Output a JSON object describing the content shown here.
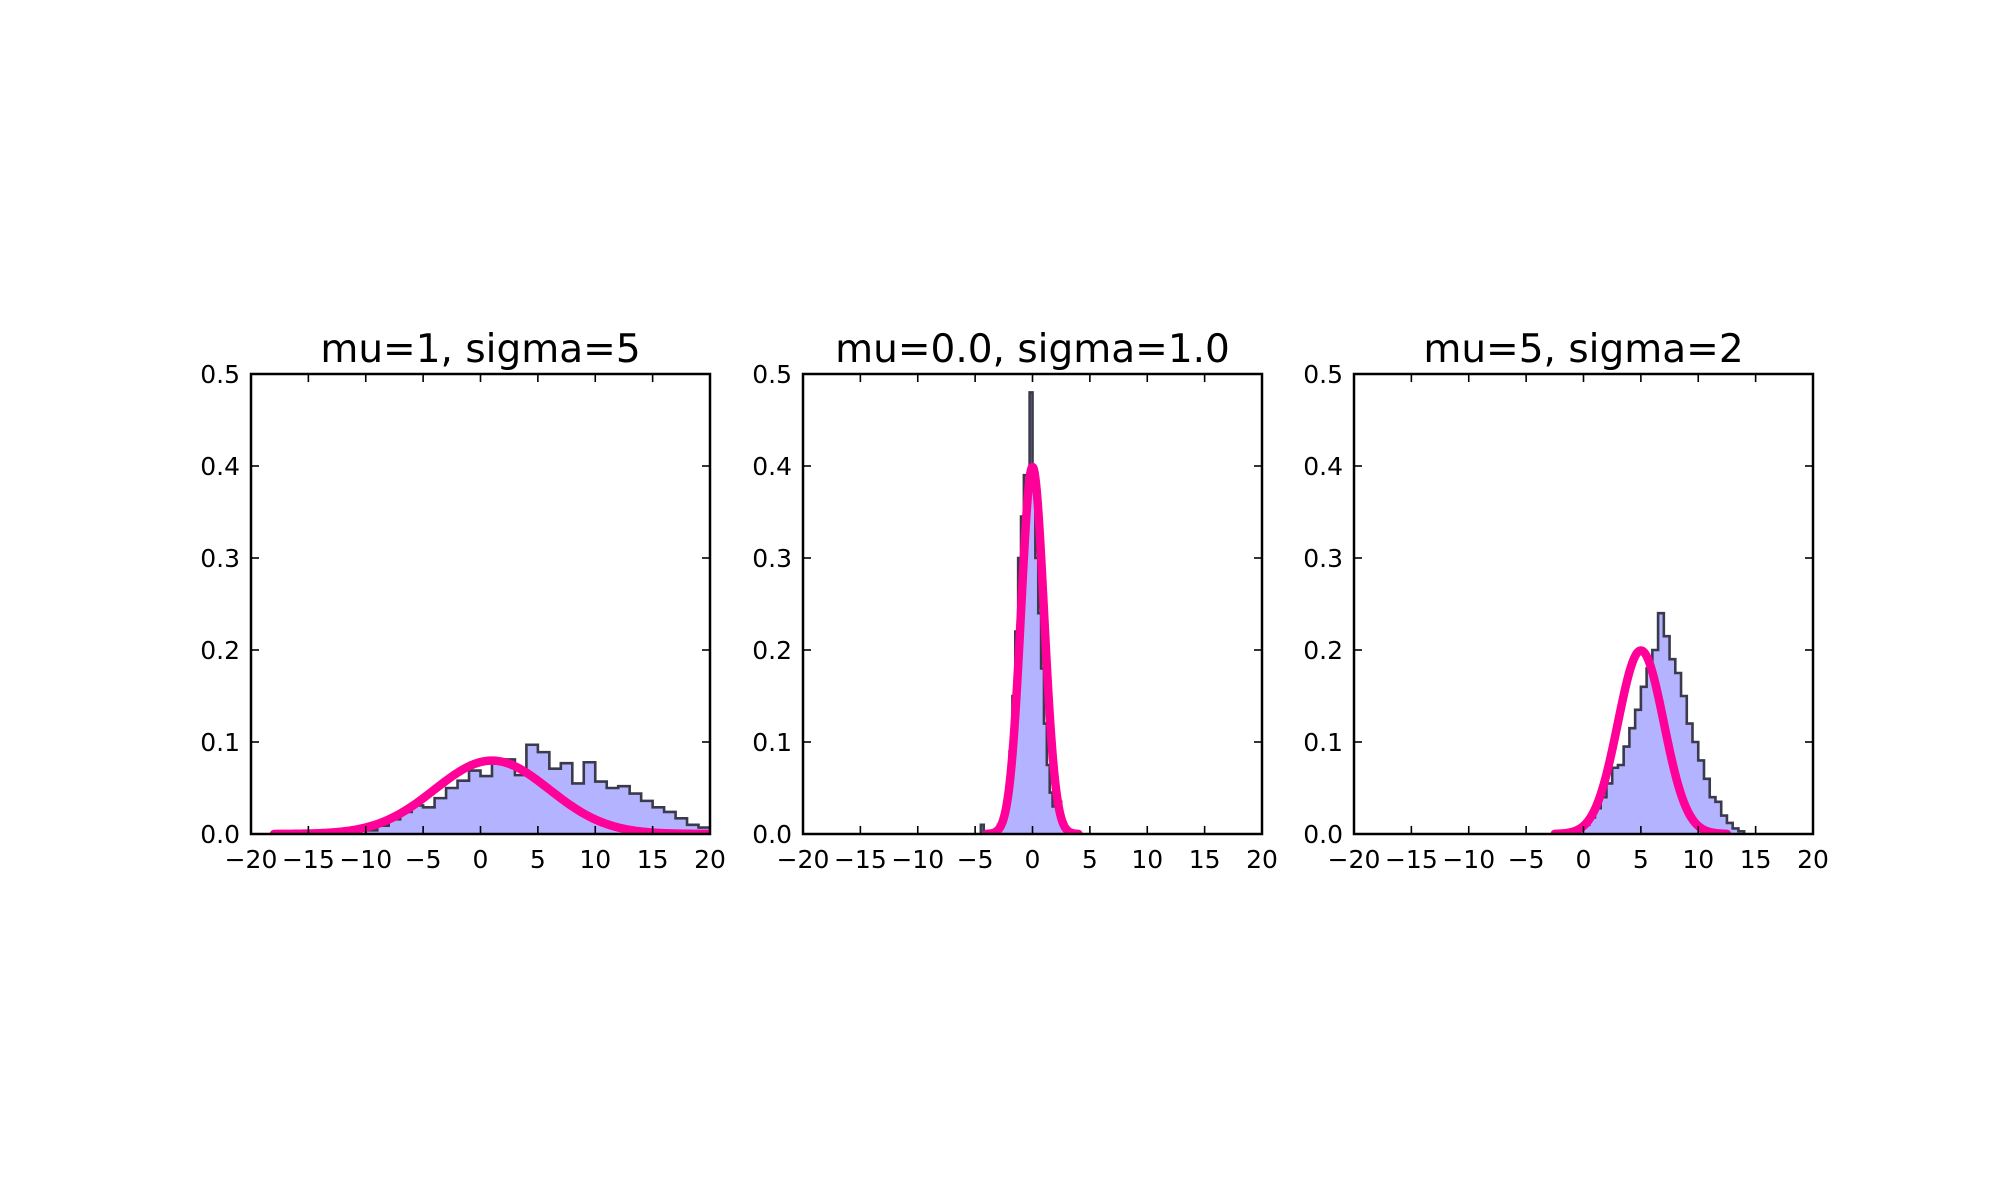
{
  "colors": {
    "hist_fill": "#b3b3ff",
    "hist_edge": "#3a3a4a",
    "curve": "#ff0099",
    "axis": "#000000",
    "background": "#ffffff"
  },
  "chart_data": [
    {
      "type": "histogram+line",
      "title": "mu=1, sigma=5",
      "mu": 1,
      "sigma": 5,
      "xlim": [
        -20,
        20
      ],
      "ylim": [
        0,
        0.5
      ],
      "xticks": [
        -20,
        -15,
        -10,
        -5,
        0,
        5,
        10,
        15,
        20
      ],
      "xtick_labels": [
        "−20",
        "−15",
        "−10",
        "−5",
        "0",
        "5",
        "10",
        "15",
        "20"
      ],
      "yticks": [
        0.0,
        0.1,
        0.2,
        0.3,
        0.4,
        0.5
      ],
      "ytick_labels": [
        "0.0",
        "0.1",
        "0.2",
        "0.3",
        "0.4",
        "0.5"
      ],
      "grid": false,
      "curve_x_range": [
        -18,
        20
      ],
      "hist": {
        "x_start": -10,
        "bin_width": 1,
        "density": [
          0.004,
          0.009,
          0.016,
          0.024,
          0.031,
          0.029,
          0.039,
          0.05,
          0.058,
          0.069,
          0.063,
          0.079,
          0.081,
          0.064,
          0.097,
          0.089,
          0.071,
          0.077,
          0.055,
          0.078,
          0.057,
          0.05,
          0.052,
          0.044,
          0.036,
          0.029,
          0.024,
          0.017,
          0.01,
          0.007,
          0.005,
          0.003
        ]
      }
    },
    {
      "type": "histogram+line",
      "title": "mu=0.0, sigma=1.0",
      "mu": 0.0,
      "sigma": 1.0,
      "xlim": [
        -20,
        20
      ],
      "ylim": [
        0,
        0.5
      ],
      "xticks": [
        -20,
        -15,
        -10,
        -5,
        0,
        5,
        10,
        15,
        20
      ],
      "xtick_labels": [
        "−20",
        "−15",
        "−10",
        "−5",
        "0",
        "5",
        "10",
        "15",
        "20"
      ],
      "yticks": [
        0.0,
        0.1,
        0.2,
        0.3,
        0.4,
        0.5
      ],
      "ytick_labels": [
        "0.0",
        "0.1",
        "0.2",
        "0.3",
        "0.4",
        "0.5"
      ],
      "grid": false,
      "curve_x_range": [
        -4,
        4
      ],
      "hist": {
        "x_start": -4.5,
        "bin_width": 0.25,
        "density": [
          0.01,
          0.0,
          0.0,
          0.0,
          0.0,
          0.005,
          0.01,
          0.016,
          0.03,
          0.05,
          0.09,
          0.15,
          0.22,
          0.3,
          0.345,
          0.39,
          0.37,
          0.48,
          0.38,
          0.3,
          0.24,
          0.18,
          0.12,
          0.075,
          0.045,
          0.03,
          0.05,
          0.035,
          0.015,
          0.005
        ]
      }
    },
    {
      "type": "histogram+line",
      "title": "mu=5, sigma=2",
      "mu": 5,
      "sigma": 2,
      "xlim": [
        -20,
        20
      ],
      "ylim": [
        0,
        0.5
      ],
      "xticks": [
        -20,
        -15,
        -10,
        -5,
        0,
        5,
        10,
        15,
        20
      ],
      "xtick_labels": [
        "−20",
        "−15",
        "−10",
        "−5",
        "0",
        "5",
        "10",
        "15",
        "20"
      ],
      "yticks": [
        0.0,
        0.1,
        0.2,
        0.3,
        0.4,
        0.5
      ],
      "ytick_labels": [
        "0.0",
        "0.1",
        "0.2",
        "0.3",
        "0.4",
        "0.5"
      ],
      "grid": false,
      "curve_x_range": [
        -2.5,
        12.5
      ],
      "hist": {
        "x_start": -1,
        "bin_width": 0.5,
        "density": [
          0.003,
          0.006,
          0.01,
          0.018,
          0.028,
          0.04,
          0.055,
          0.072,
          0.075,
          0.095,
          0.115,
          0.135,
          0.16,
          0.18,
          0.2,
          0.24,
          0.215,
          0.19,
          0.175,
          0.15,
          0.12,
          0.1,
          0.08,
          0.06,
          0.04,
          0.035,
          0.02,
          0.012,
          0.006,
          0.003
        ]
      }
    }
  ]
}
